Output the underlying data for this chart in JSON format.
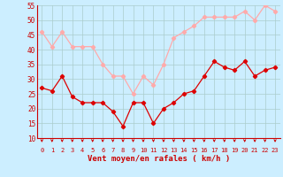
{
  "hours": [
    0,
    1,
    2,
    3,
    4,
    5,
    6,
    7,
    8,
    9,
    10,
    11,
    12,
    13,
    14,
    15,
    16,
    17,
    18,
    19,
    20,
    21,
    22,
    23
  ],
  "wind_avg": [
    27,
    26,
    31,
    24,
    22,
    22,
    22,
    19,
    14,
    22,
    22,
    15,
    20,
    22,
    25,
    26,
    31,
    36,
    34,
    33,
    36,
    31,
    33,
    34
  ],
  "wind_gust": [
    46,
    41,
    46,
    41,
    41,
    41,
    35,
    31,
    31,
    25,
    31,
    28,
    35,
    44,
    46,
    48,
    51,
    51,
    51,
    51,
    53,
    50,
    55,
    53
  ],
  "avg_color": "#dd0000",
  "gust_color": "#ffaaaa",
  "bg_color": "#cceeff",
  "grid_color": "#aacccc",
  "xlabel": "Vent moyen/en rafales ( km/h )",
  "ylim": [
    10,
    55
  ],
  "yticks": [
    10,
    15,
    20,
    25,
    30,
    35,
    40,
    45,
    50,
    55
  ],
  "label_color": "#cc0000",
  "line_color": "#cc0000"
}
